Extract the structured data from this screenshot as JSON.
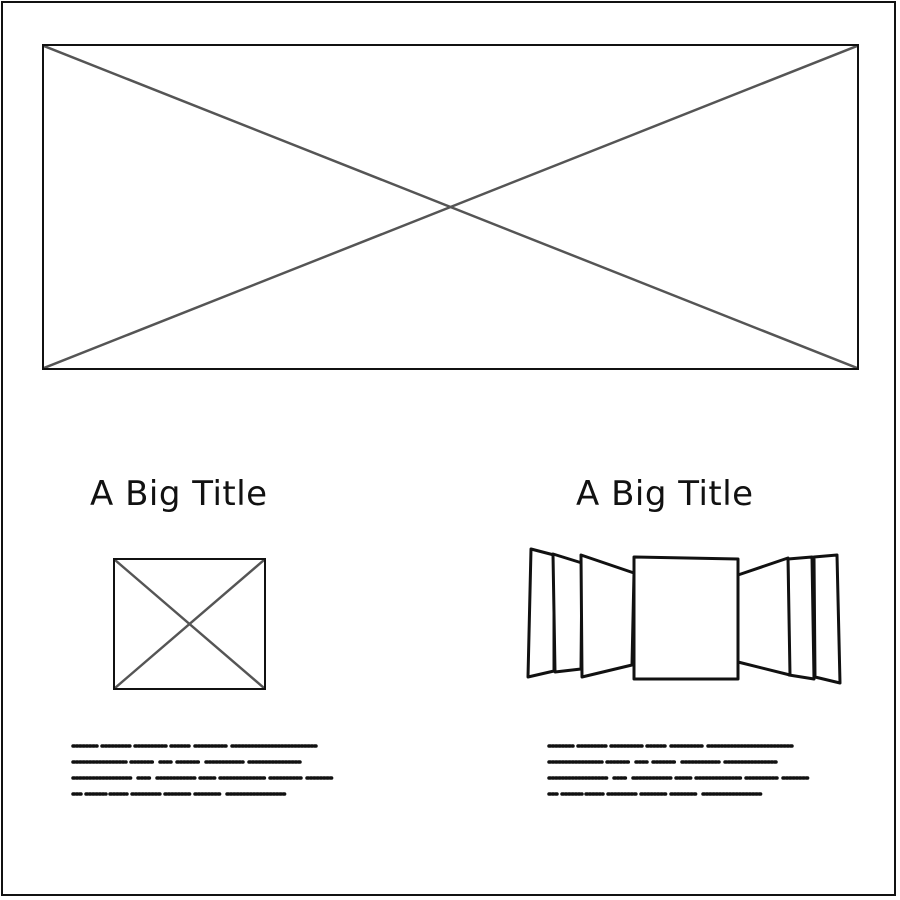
{
  "columns": [
    {
      "title": "A Big Title",
      "media": "image-placeholder"
    },
    {
      "title": "A Big Title",
      "media": "cover-flow-carousel"
    }
  ],
  "colors": {
    "ink": "#111111",
    "placeholder_cross": "#555555",
    "background": "#ffffff"
  }
}
